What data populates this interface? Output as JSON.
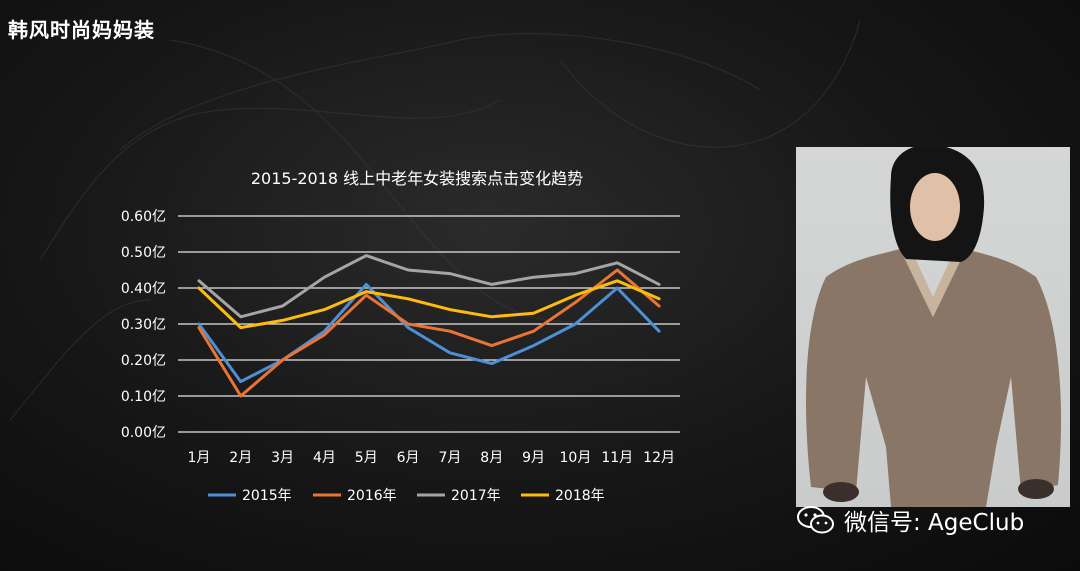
{
  "slide": {
    "title": "韩风时尚妈妈装"
  },
  "chart_data": {
    "type": "line",
    "title": "2015-2018 线上中老年女装搜索点击变化趋势",
    "categories": [
      "1月",
      "2月",
      "3月",
      "4月",
      "5月",
      "6月",
      "7月",
      "8月",
      "9月",
      "10月",
      "11月",
      "12月"
    ],
    "y_ticks": [
      "0.00亿",
      "0.10亿",
      "0.20亿",
      "0.30亿",
      "0.40亿",
      "0.50亿",
      "0.60亿"
    ],
    "ylim": [
      0,
      0.6
    ],
    "grid": true,
    "legend_position": "bottom",
    "series": [
      {
        "name": "2015年",
        "color": "#4e8fd8",
        "values": [
          0.3,
          0.14,
          0.2,
          0.28,
          0.41,
          0.29,
          0.22,
          0.19,
          0.24,
          0.3,
          0.4,
          0.28
        ]
      },
      {
        "name": "2016年",
        "color": "#ea7433",
        "values": [
          0.29,
          0.1,
          0.2,
          0.27,
          0.38,
          0.3,
          0.28,
          0.24,
          0.28,
          0.36,
          0.45,
          0.35
        ]
      },
      {
        "name": "2017年",
        "color": "#a5a5a5",
        "values": [
          0.42,
          0.32,
          0.35,
          0.43,
          0.49,
          0.45,
          0.44,
          0.41,
          0.43,
          0.44,
          0.47,
          0.41
        ]
      },
      {
        "name": "2018年",
        "color": "#fdbb0f",
        "values": [
          0.4,
          0.29,
          0.31,
          0.34,
          0.39,
          0.37,
          0.34,
          0.32,
          0.33,
          0.38,
          0.42,
          0.37
        ]
      }
    ]
  },
  "watermark": {
    "text": "微信号: AgeClub"
  }
}
